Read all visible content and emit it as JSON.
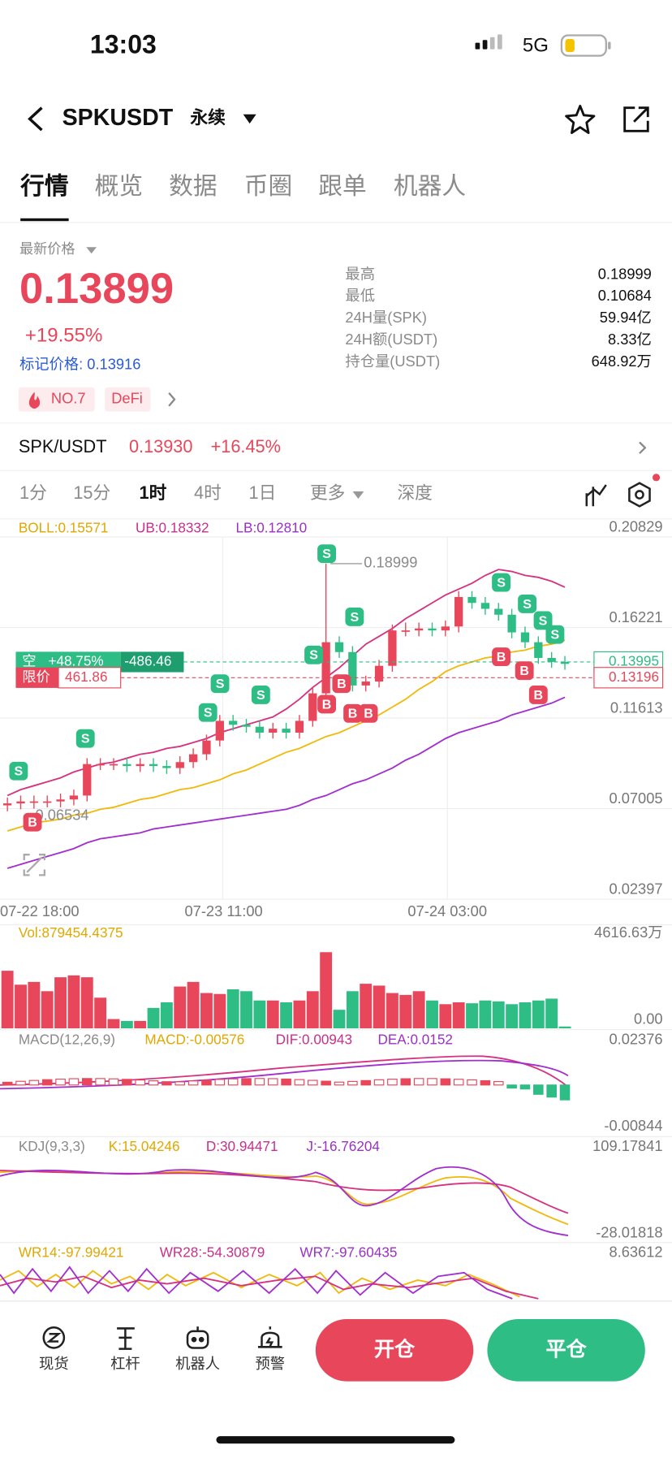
{
  "status": {
    "time": "13:03",
    "network": "5G"
  },
  "header": {
    "symbol": "SPKUSDT",
    "contract": "永续"
  },
  "tabs": [
    "行情",
    "概览",
    "数据",
    "币圈",
    "跟单",
    "机器人"
  ],
  "price": {
    "label": "最新价格",
    "last": "0.13899",
    "change": "+19.55%",
    "mark": "标记价格: 0.13916",
    "rank": "NO.7",
    "sector": "DeFi"
  },
  "stats": [
    {
      "label": "最高",
      "value": "0.18999"
    },
    {
      "label": "最低",
      "value": "0.10684"
    },
    {
      "label": "24H量(SPK)",
      "value": "59.94亿"
    },
    {
      "label": "24H额(USDT)",
      "value": "8.33亿"
    },
    {
      "label": "持仓量(USDT)",
      "value": "648.92万"
    }
  ],
  "spot": {
    "pair": "SPK/USDT",
    "price": "0.13930",
    "change": "+16.45%"
  },
  "intervals": [
    "1分",
    "15分",
    "1时",
    "4时",
    "1日",
    "更多",
    "深度"
  ],
  "kline": {
    "type": "candlestick",
    "legend": {
      "boll": "BOLL:0.15571",
      "ub": "UB:0.18332",
      "lb": "LB:0.12810"
    },
    "ylim": [
      0.02397,
      0.20829
    ],
    "yticks": [
      0.20829,
      0.16221,
      0.11613,
      0.07005,
      0.02397
    ],
    "x_labels": [
      "07-22 18:00",
      "07-23 11:00",
      "07-24 03:00"
    ],
    "up_color": "#e8465a",
    "down_color": "#2dbd85",
    "open": [
      0.067,
      0.068,
      0.069,
      0.069,
      0.069,
      0.07,
      0.072,
      0.088,
      0.088,
      0.088,
      0.087,
      0.088,
      0.087,
      0.086,
      0.089,
      0.093,
      0.1,
      0.11,
      0.108,
      0.107,
      0.104,
      0.106,
      0.104,
      0.11,
      0.124,
      0.15,
      0.145,
      0.128,
      0.13,
      0.138,
      0.156,
      0.156,
      0.157,
      0.156,
      0.158,
      0.173,
      0.17,
      0.167,
      0.164,
      0.155,
      0.15,
      0.142,
      0.14
    ],
    "high": [
      0.071,
      0.072,
      0.072,
      0.072,
      0.073,
      0.075,
      0.091,
      0.091,
      0.091,
      0.091,
      0.091,
      0.091,
      0.09,
      0.092,
      0.096,
      0.103,
      0.113,
      0.113,
      0.111,
      0.11,
      0.109,
      0.109,
      0.113,
      0.127,
      0.18999,
      0.153,
      0.148,
      0.133,
      0.141,
      0.159,
      0.16,
      0.16,
      0.16,
      0.161,
      0.176,
      0.176,
      0.173,
      0.17,
      0.167,
      0.158,
      0.153,
      0.145,
      0.143
    ],
    "low": [
      0.064,
      0.065,
      0.06534,
      0.066,
      0.066,
      0.067,
      0.069,
      0.085,
      0.085,
      0.084,
      0.084,
      0.084,
      0.083,
      0.083,
      0.086,
      0.09,
      0.097,
      0.105,
      0.104,
      0.101,
      0.101,
      0.101,
      0.101,
      0.107,
      0.121,
      0.142,
      0.125,
      0.125,
      0.127,
      0.135,
      0.153,
      0.153,
      0.153,
      0.153,
      0.155,
      0.167,
      0.164,
      0.161,
      0.152,
      0.147,
      0.139,
      0.137,
      0.136
    ],
    "close": [
      0.068,
      0.069,
      0.069,
      0.069,
      0.07,
      0.072,
      0.088,
      0.088,
      0.088,
      0.087,
      0.088,
      0.087,
      0.086,
      0.089,
      0.093,
      0.1,
      0.11,
      0.108,
      0.107,
      0.104,
      0.106,
      0.104,
      0.11,
      0.124,
      0.15,
      0.145,
      0.128,
      0.13,
      0.138,
      0.156,
      0.156,
      0.157,
      0.156,
      0.158,
      0.173,
      0.17,
      0.167,
      0.164,
      0.155,
      0.15,
      0.142,
      0.14,
      0.139
    ],
    "bands": [
      {
        "color": "#d6327f",
        "values": [
          0.072,
          0.075,
          0.077,
          0.079,
          0.081,
          0.084,
          0.086,
          0.088,
          0.089,
          0.091,
          0.093,
          0.094,
          0.096,
          0.097,
          0.099,
          0.101,
          0.104,
          0.106,
          0.108,
          0.11,
          0.112,
          0.116,
          0.121,
          0.127,
          0.132,
          0.137,
          0.143,
          0.149,
          0.153,
          0.157,
          0.162,
          0.166,
          0.17,
          0.174,
          0.177,
          0.18,
          0.184,
          0.187,
          0.186,
          0.184,
          0.183,
          0.181,
          0.178
        ]
      },
      {
        "color": "#f0b90b",
        "values": [
          0.054,
          0.056,
          0.058,
          0.059,
          0.06,
          0.062,
          0.063,
          0.065,
          0.066,
          0.068,
          0.07,
          0.071,
          0.073,
          0.075,
          0.076,
          0.078,
          0.08,
          0.083,
          0.085,
          0.088,
          0.091,
          0.094,
          0.096,
          0.099,
          0.102,
          0.104,
          0.107,
          0.11,
          0.113,
          0.117,
          0.121,
          0.126,
          0.13,
          0.135,
          0.138,
          0.14,
          0.142,
          0.143,
          0.145,
          0.146,
          0.148,
          0.149,
          0.151
        ]
      },
      {
        "color": "#a22ed0",
        "values": [
          0.035,
          0.037,
          0.039,
          0.041,
          0.043,
          0.045,
          0.048,
          0.05,
          0.051,
          0.052,
          0.053,
          0.055,
          0.056,
          0.057,
          0.058,
          0.059,
          0.06,
          0.061,
          0.062,
          0.063,
          0.064,
          0.065,
          0.067,
          0.07,
          0.072,
          0.075,
          0.078,
          0.08,
          0.083,
          0.086,
          0.09,
          0.093,
          0.097,
          0.101,
          0.104,
          0.106,
          0.108,
          0.11,
          0.113,
          0.115,
          0.117,
          0.119,
          0.122
        ]
      }
    ],
    "annotations": {
      "high": 0.18999,
      "low": 0.06534
    },
    "markers": {
      "sell": "S",
      "buy": "B"
    },
    "position": {
      "side": "空",
      "pnl_pct": "+48.75%",
      "pnl": "-486.46",
      "price": 0.13995
    },
    "limit": {
      "label": "限价",
      "qty": "461.86",
      "price": 0.13196
    }
  },
  "volume": {
    "legend": "Vol:879454.4375",
    "ylim": [
      0,
      46166300
    ],
    "yticks": [
      {
        "value": 46166300,
        "label": "4616.63万"
      },
      {
        "value": 0,
        "label": "0.00"
      }
    ],
    "values": [
      28060000,
      21270000,
      22630000,
      18100000,
      24890000,
      25800000,
      24890000,
      14940000,
      4530000,
      3620000,
      3620000,
      9960000,
      12670000,
      20370000,
      22630000,
      17200000,
      16750000,
      19010000,
      18100000,
      13580000,
      13580000,
      12670000,
      13580000,
      18100000,
      37110000,
      9050000,
      18100000,
      21730000,
      20820000,
      17200000,
      16290000,
      18100000,
      13580000,
      11770000,
      12670000,
      12220000,
      13580000,
      13130000,
      11770000,
      12670000,
      13580000,
      14480000,
      900000
    ]
  },
  "macd": {
    "legend": [
      "MACD(12,26,9)",
      "MACD:-0.00576",
      "DIF:0.00943",
      "DEA:0.0152"
    ],
    "axis": [
      0.02376,
      -0.00844
    ]
  },
  "kdj": {
    "legend": [
      "KDJ(9,3,3)",
      "K:15.04246",
      "D:30.94471",
      "J:-16.76204"
    ],
    "axis": [
      109.17841,
      -28.01818
    ]
  },
  "wr": {
    "legend": [
      "WR14:-97.99421",
      "WR28:-54.30879",
      "WR7:-97.60435"
    ],
    "axis": [
      8.63612
    ]
  },
  "nav": [
    "现货",
    "杠杆",
    "机器人",
    "预警"
  ],
  "actions": {
    "open": "开仓",
    "close": "平仓"
  }
}
